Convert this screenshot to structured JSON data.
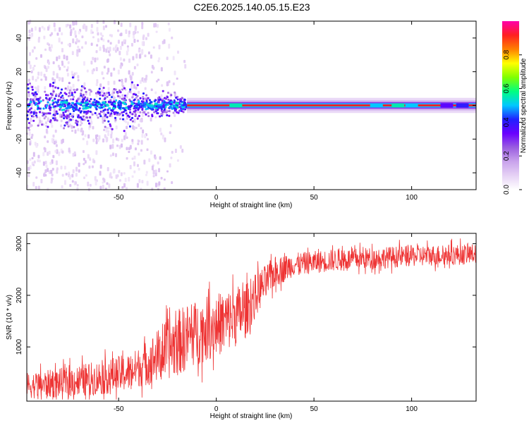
{
  "title": "C2E6.2025.140.05.15.E23",
  "colors": {
    "line": "#ee3333",
    "axis": "#000000",
    "colormap": [
      "#ffffff",
      "#e6d2f5",
      "#c9a3ec",
      "#9a5de0",
      "#6a00ff",
      "#2020ff",
      "#00c8ff",
      "#00ff80",
      "#80ff00",
      "#ffff00",
      "#ff8000",
      "#ff2020",
      "#ff00aa"
    ]
  },
  "chart_data": [
    {
      "type": "heatmap",
      "xlabel": "Height of straight line (km)",
      "ylabel": "Frequency (Hz)",
      "xlim": [
        -97,
        133
      ],
      "ylim": [
        -50,
        50
      ],
      "xticks": [
        -50,
        0,
        50,
        100
      ],
      "yticks": [
        -40,
        -20,
        0,
        20,
        40
      ],
      "colorbar": {
        "label": "Normalized spectral amplitude",
        "range": [
          0,
          1
        ],
        "ticks": [
          "0.0",
          "0.2",
          "0.4",
          "0.6",
          "0.8"
        ]
      },
      "features": {
        "center_band_hz": 0,
        "noise_region_km": [
          -97,
          -40
        ],
        "transition_km": [
          -40,
          -15
        ],
        "clean_region_km": [
          -15,
          133
        ]
      }
    },
    {
      "type": "line",
      "xlabel": "Height of straight line (km)",
      "ylabel": "SNR (10 * v/v)",
      "xlim": [
        -97,
        133
      ],
      "ylim": [
        -50,
        3200
      ],
      "xticks": [
        -50,
        0,
        50,
        100
      ],
      "yticks": [
        1000,
        2000,
        3000
      ],
      "series": [
        {
          "trend_points": [
            {
              "x": -97,
              "y": 250
            },
            {
              "x": -80,
              "y": 300
            },
            {
              "x": -60,
              "y": 400
            },
            {
              "x": -45,
              "y": 500
            },
            {
              "x": -35,
              "y": 700
            },
            {
              "x": -25,
              "y": 950
            },
            {
              "x": -15,
              "y": 1200
            },
            {
              "x": -5,
              "y": 1350
            },
            {
              "x": 5,
              "y": 1500
            },
            {
              "x": 15,
              "y": 1700
            },
            {
              "x": 22,
              "y": 2100
            },
            {
              "x": 30,
              "y": 2450
            },
            {
              "x": 40,
              "y": 2600
            },
            {
              "x": 60,
              "y": 2680
            },
            {
              "x": 80,
              "y": 2720
            },
            {
              "x": 100,
              "y": 2760
            },
            {
              "x": 133,
              "y": 2800
            }
          ],
          "noise": [
            {
              "x": -97,
              "amp": 250
            },
            {
              "x": -40,
              "amp": 380
            },
            {
              "x": -20,
              "amp": 650
            },
            {
              "x": 10,
              "amp": 600
            },
            {
              "x": 25,
              "amp": 350
            },
            {
              "x": 40,
              "amp": 220
            },
            {
              "x": 133,
              "amp": 200
            }
          ]
        }
      ]
    }
  ]
}
